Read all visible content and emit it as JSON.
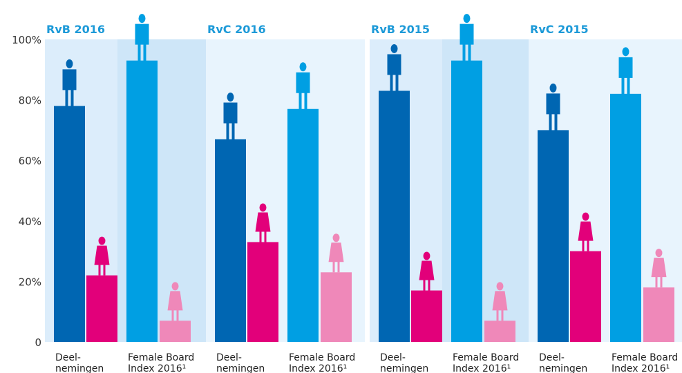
{
  "chart_data": {
    "type": "bar",
    "ylim": [
      0,
      100
    ],
    "yticks": [
      0,
      {
        "value": 20,
        "label": "20%"
      },
      {
        "value": 40,
        "label": "40%"
      },
      {
        "value": 60,
        "label": "60%"
      },
      {
        "value": 80,
        "label": "80%"
      },
      {
        "value": 100,
        "label": "100%"
      }
    ],
    "panels": [
      {
        "title": "RvB 2016",
        "categories": [
          [
            "Deel-",
            "nemingen"
          ],
          [
            "Female Board",
            "Index 2016¹"
          ]
        ],
        "series": [
          {
            "colors": [
              "#0066b2",
              "#009fe3"
            ],
            "values": [
              78,
              93
            ]
          },
          {
            "colors": [
              "#e2007a",
              "#ef88b9"
            ],
            "values": [
              22,
              7
            ]
          }
        ]
      },
      {
        "title": "RvC 2016",
        "categories": [
          [
            "Deel-",
            "nemingen"
          ],
          [
            "Female Board",
            "Index 2016¹"
          ]
        ],
        "series": [
          {
            "colors": [
              "#0066b2",
              "#009fe3"
            ],
            "values": [
              67,
              77
            ]
          },
          {
            "colors": [
              "#e2007a",
              "#ef88b9"
            ],
            "values": [
              33,
              23
            ]
          }
        ]
      },
      {
        "title": "RvB 2015",
        "categories": [
          [
            "Deel-",
            "nemingen"
          ],
          [
            "Female Board",
            "Index 2016¹"
          ]
        ],
        "series": [
          {
            "colors": [
              "#0066b2",
              "#009fe3"
            ],
            "values": [
              83,
              93
            ]
          },
          {
            "colors": [
              "#e2007a",
              "#ef88b9"
            ],
            "values": [
              17,
              7
            ]
          }
        ]
      },
      {
        "title": "RvC 2015",
        "categories": [
          [
            "Deel-",
            "nemingen"
          ],
          [
            "Female Board",
            "Index 2016¹"
          ]
        ],
        "series": [
          {
            "colors": [
              "#0066b2",
              "#009fe3"
            ],
            "values": [
              70,
              82
            ]
          },
          {
            "colors": [
              "#e2007a",
              "#ef88b9"
            ],
            "values": [
              30,
              18
            ]
          }
        ]
      }
    ]
  }
}
